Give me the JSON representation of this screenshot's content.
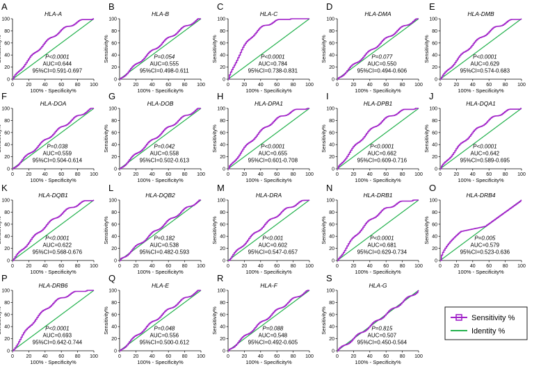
{
  "figure": {
    "x_label": "100% - Specificity%",
    "y_label": "Sensitivity%",
    "legend": {
      "entries": [
        {
          "label": "Sensitivity %",
          "color": "#a020c8",
          "marker": "square"
        },
        {
          "label": "Identity %",
          "color": "#22b14c",
          "marker": "none"
        }
      ]
    }
  },
  "chart_data": [
    {
      "type": "line",
      "panel": "A",
      "title": "HLA-A",
      "p_label": "P<0.0001",
      "auc_label": "AUC=0.644",
      "ci_label": "95%CI=0.591-0.697",
      "auc": 0.644,
      "xlabel": "100% - Specificity%",
      "ylabel": "Sensitivity%",
      "xlim": [
        0,
        100
      ],
      "ylim": [
        0,
        100
      ],
      "ticks": [
        0,
        20,
        40,
        60,
        80,
        100
      ],
      "series": [
        {
          "name": "Sensitivity %",
          "color": "#a020c8"
        },
        {
          "name": "Identity %",
          "color": "#22b14c",
          "x": [
            0,
            100
          ],
          "y": [
            0,
            100
          ]
        }
      ]
    },
    {
      "type": "line",
      "panel": "B",
      "title": "HLA-B",
      "p_label": "P=0.054",
      "auc_label": "AUC=0.555",
      "ci_label": "95%CI=0.498-0.611",
      "auc": 0.555,
      "xlabel": "100% - Specificity%",
      "ylabel": "Sensitivity%",
      "xlim": [
        0,
        100
      ],
      "ylim": [
        0,
        100
      ],
      "ticks": [
        0,
        20,
        40,
        60,
        80,
        100
      ],
      "series": [
        {
          "name": "Sensitivity %",
          "color": "#a020c8"
        },
        {
          "name": "Identity %",
          "color": "#22b14c",
          "x": [
            0,
            100
          ],
          "y": [
            0,
            100
          ]
        }
      ]
    },
    {
      "type": "line",
      "panel": "C",
      "title": "HLA-C",
      "p_label": "P<0.0001",
      "auc_label": "AUC=0.784",
      "ci_label": "95%CI=0.738-0.831",
      "auc": 0.784,
      "xlabel": "100% - Specificity%",
      "ylabel": "Sensitivity%",
      "xlim": [
        0,
        100
      ],
      "ylim": [
        0,
        100
      ],
      "ticks": [
        0,
        20,
        40,
        60,
        80,
        100
      ],
      "series": [
        {
          "name": "Sensitivity %",
          "color": "#a020c8"
        },
        {
          "name": "Identity %",
          "color": "#22b14c",
          "x": [
            0,
            100
          ],
          "y": [
            0,
            100
          ]
        }
      ]
    },
    {
      "type": "line",
      "panel": "D",
      "title": "HLA-DMA",
      "p_label": "P=0.077",
      "auc_label": "AUC=0.550",
      "ci_label": "95%CI=0.494-0.606",
      "auc": 0.55,
      "xlabel": "100% - Specificity%",
      "ylabel": "Sensitivity%",
      "xlim": [
        0,
        100
      ],
      "ylim": [
        0,
        100
      ],
      "ticks": [
        0,
        20,
        40,
        60,
        80,
        100
      ],
      "series": [
        {
          "name": "Sensitivity %",
          "color": "#a020c8"
        },
        {
          "name": "Identity %",
          "color": "#22b14c",
          "x": [
            0,
            100
          ],
          "y": [
            0,
            100
          ]
        }
      ]
    },
    {
      "type": "line",
      "panel": "E",
      "title": "HLA-DMB",
      "p_label": "P<0.0001",
      "auc_label": "AUC=0.629",
      "ci_label": "95%CI=0.574-0.683",
      "auc": 0.629,
      "xlabel": "100% - Specificity%",
      "ylabel": "Sensitivity%",
      "xlim": [
        0,
        100
      ],
      "ylim": [
        0,
        100
      ],
      "ticks": [
        0,
        20,
        40,
        60,
        80,
        100
      ],
      "series": [
        {
          "name": "Sensitivity %",
          "color": "#a020c8"
        },
        {
          "name": "Identity %",
          "color": "#22b14c",
          "x": [
            0,
            100
          ],
          "y": [
            0,
            100
          ]
        }
      ]
    },
    {
      "type": "line",
      "panel": "F",
      "title": "HLA-DOA",
      "p_label": "P=0.038",
      "auc_label": "AUC=0.559",
      "ci_label": "95%CI=0.504-0.614",
      "auc": 0.559,
      "xlabel": "100% - Specificity%",
      "ylabel": "Sensitivity%",
      "xlim": [
        0,
        100
      ],
      "ylim": [
        0,
        100
      ],
      "ticks": [
        0,
        20,
        40,
        60,
        80,
        100
      ],
      "series": [
        {
          "name": "Sensitivity %",
          "color": "#a020c8"
        },
        {
          "name": "Identity %",
          "color": "#22b14c",
          "x": [
            0,
            100
          ],
          "y": [
            0,
            100
          ]
        }
      ]
    },
    {
      "type": "line",
      "panel": "G",
      "title": "HLA-DOB",
      "p_label": "P=0.042",
      "auc_label": "AUC=0.558",
      "ci_label": "95%CI=0.502-0.613",
      "auc": 0.558,
      "xlabel": "100% - Specificity%",
      "ylabel": "Sensitivity%",
      "xlim": [
        0,
        100
      ],
      "ylim": [
        0,
        100
      ],
      "ticks": [
        0,
        20,
        40,
        60,
        80,
        100
      ],
      "series": [
        {
          "name": "Sensitivity %",
          "color": "#a020c8"
        },
        {
          "name": "Identity %",
          "color": "#22b14c",
          "x": [
            0,
            100
          ],
          "y": [
            0,
            100
          ]
        }
      ]
    },
    {
      "type": "line",
      "panel": "H",
      "title": "HLA-DPA1",
      "p_label": "P<0.0001",
      "auc_label": "AUC=0.655",
      "ci_label": "95%CI=0.601-0.708",
      "auc": 0.655,
      "xlabel": "100% - Specificity%",
      "ylabel": "Sensitivity%",
      "xlim": [
        0,
        100
      ],
      "ylim": [
        0,
        100
      ],
      "ticks": [
        0,
        20,
        40,
        60,
        80,
        100
      ],
      "series": [
        {
          "name": "Sensitivity %",
          "color": "#a020c8"
        },
        {
          "name": "Identity %",
          "color": "#22b14c",
          "x": [
            0,
            100
          ],
          "y": [
            0,
            100
          ]
        }
      ]
    },
    {
      "type": "line",
      "panel": "I",
      "title": "HLA-DPB1",
      "p_label": "P<0.0001",
      "auc_label": "AUC=0.662",
      "ci_label": "95%CI=0.609-0.716",
      "auc": 0.662,
      "xlabel": "100% - Specificity%",
      "ylabel": "Sensitivity%",
      "xlim": [
        0,
        100
      ],
      "ylim": [
        0,
        100
      ],
      "ticks": [
        0,
        20,
        40,
        60,
        80,
        100
      ],
      "series": [
        {
          "name": "Sensitivity %",
          "color": "#a020c8"
        },
        {
          "name": "Identity %",
          "color": "#22b14c",
          "x": [
            0,
            100
          ],
          "y": [
            0,
            100
          ]
        }
      ]
    },
    {
      "type": "line",
      "panel": "J",
      "title": "HLA-DQA1",
      "p_label": "P<0.0001",
      "auc_label": "AUC=0.642",
      "ci_label": "95%CI=0.589-0.695",
      "auc": 0.642,
      "xlabel": "100% - Specificity%",
      "ylabel": "Sensitivity%",
      "xlim": [
        0,
        100
      ],
      "ylim": [
        0,
        100
      ],
      "ticks": [
        0,
        20,
        40,
        60,
        80,
        100
      ],
      "series": [
        {
          "name": "Sensitivity %",
          "color": "#a020c8"
        },
        {
          "name": "Identity %",
          "color": "#22b14c",
          "x": [
            0,
            100
          ],
          "y": [
            0,
            100
          ]
        }
      ]
    },
    {
      "type": "line",
      "panel": "K",
      "title": "HLA-DQB1",
      "p_label": "P<0.0001",
      "auc_label": "AUC=0.622",
      "ci_label": "95%CI=0.568-0.676",
      "auc": 0.622,
      "xlabel": "100% - Specificity%",
      "ylabel": "Sensitivity%",
      "xlim": [
        0,
        100
      ],
      "ylim": [
        0,
        100
      ],
      "ticks": [
        0,
        20,
        40,
        60,
        80,
        100
      ],
      "series": [
        {
          "name": "Sensitivity %",
          "color": "#a020c8"
        },
        {
          "name": "Identity %",
          "color": "#22b14c",
          "x": [
            0,
            100
          ],
          "y": [
            0,
            100
          ]
        }
      ]
    },
    {
      "type": "line",
      "panel": "L",
      "title": "HLA-DQB2",
      "p_label": "P=0.182",
      "auc_label": "AUC=0.538",
      "ci_label": "95%CI=0.482-0.593",
      "auc": 0.538,
      "xlabel": "100% - Specificity%",
      "ylabel": "Sensitivity%",
      "xlim": [
        0,
        100
      ],
      "ylim": [
        0,
        100
      ],
      "ticks": [
        0,
        20,
        40,
        60,
        80,
        100
      ],
      "series": [
        {
          "name": "Sensitivity %",
          "color": "#a020c8"
        },
        {
          "name": "Identity %",
          "color": "#22b14c",
          "x": [
            0,
            100
          ],
          "y": [
            0,
            100
          ]
        }
      ]
    },
    {
      "type": "line",
      "panel": "M",
      "title": "HLA-DRA",
      "p_label": "P<0.001",
      "auc_label": "AUC=0.602",
      "ci_label": "95%CI=0.547-0.657",
      "auc": 0.602,
      "xlabel": "100% - Specificity%",
      "ylabel": "Sensitivity%",
      "xlim": [
        0,
        100
      ],
      "ylim": [
        0,
        100
      ],
      "ticks": [
        0,
        20,
        40,
        60,
        80,
        100
      ],
      "series": [
        {
          "name": "Sensitivity %",
          "color": "#a020c8"
        },
        {
          "name": "Identity %",
          "color": "#22b14c",
          "x": [
            0,
            100
          ],
          "y": [
            0,
            100
          ]
        }
      ]
    },
    {
      "type": "line",
      "panel": "N",
      "title": "HLA-DRB1",
      "p_label": "P<0.0001",
      "auc_label": "AUC=0.681",
      "ci_label": "95%CI=0.629-0.734",
      "auc": 0.681,
      "xlabel": "100% - Specificity%",
      "ylabel": "Sensitivity%",
      "xlim": [
        0,
        100
      ],
      "ylim": [
        0,
        100
      ],
      "ticks": [
        0,
        20,
        40,
        60,
        80,
        100
      ],
      "series": [
        {
          "name": "Sensitivity %",
          "color": "#a020c8"
        },
        {
          "name": "Identity %",
          "color": "#22b14c",
          "x": [
            0,
            100
          ],
          "y": [
            0,
            100
          ]
        }
      ]
    },
    {
      "type": "line",
      "panel": "O",
      "title": "HLA-DRB4",
      "p_label": "P=0.005",
      "auc_label": "AUC=0.579",
      "ci_label": "95%CI=0.523-0.636",
      "auc": 0.579,
      "xlabel": "100% - Specificity%",
      "ylabel": "Sensitivity%",
      "xlim": [
        0,
        100
      ],
      "ylim": [
        0,
        100
      ],
      "ticks": [
        0,
        20,
        40,
        60,
        80,
        100
      ],
      "series": [
        {
          "name": "Sensitivity %",
          "color": "#a020c8"
        },
        {
          "name": "Identity %",
          "color": "#22b14c",
          "x": [
            0,
            100
          ],
          "y": [
            0,
            100
          ]
        }
      ]
    },
    {
      "type": "line",
      "panel": "P",
      "title": "HLA-DRB6",
      "p_label": "P<0.0001",
      "auc_label": "AUC=0.693",
      "ci_label": "95%CI=0.642-0.744",
      "auc": 0.693,
      "xlabel": "100% - Specificity%",
      "ylabel": "Sensitivity%",
      "xlim": [
        0,
        100
      ],
      "ylim": [
        0,
        100
      ],
      "ticks": [
        0,
        20,
        40,
        60,
        80,
        100
      ],
      "series": [
        {
          "name": "Sensitivity %",
          "color": "#a020c8"
        },
        {
          "name": "Identity %",
          "color": "#22b14c",
          "x": [
            0,
            100
          ],
          "y": [
            0,
            100
          ]
        }
      ]
    },
    {
      "type": "line",
      "panel": "Q",
      "title": "HLA-E",
      "p_label": "P=0.048",
      "auc_label": "AUC=0.556",
      "ci_label": "95%CI=0.500-0.612",
      "auc": 0.556,
      "xlabel": "100% - Specificity%",
      "ylabel": "Sensitivity%",
      "xlim": [
        0,
        100
      ],
      "ylim": [
        0,
        100
      ],
      "ticks": [
        0,
        20,
        40,
        60,
        80,
        100
      ],
      "series": [
        {
          "name": "Sensitivity %",
          "color": "#a020c8"
        },
        {
          "name": "Identity %",
          "color": "#22b14c",
          "x": [
            0,
            100
          ],
          "y": [
            0,
            100
          ]
        }
      ]
    },
    {
      "type": "line",
      "panel": "R",
      "title": "HLA-F",
      "p_label": "P=0.088",
      "auc_label": "AUC=0.548",
      "ci_label": "95%CI=0.492-0.605",
      "auc": 0.548,
      "xlabel": "100% - Specificity%",
      "ylabel": "Sensitivity%",
      "xlim": [
        0,
        100
      ],
      "ylim": [
        0,
        100
      ],
      "ticks": [
        0,
        20,
        40,
        60,
        80,
        100
      ],
      "series": [
        {
          "name": "Sensitivity %",
          "color": "#a020c8"
        },
        {
          "name": "Identity %",
          "color": "#22b14c",
          "x": [
            0,
            100
          ],
          "y": [
            0,
            100
          ]
        }
      ]
    },
    {
      "type": "line",
      "panel": "S",
      "title": "HLA-G",
      "p_label": "P=0.815",
      "auc_label": "AUC=0.507",
      "ci_label": "95%CI=0.450-0.564",
      "auc": 0.507,
      "xlabel": "100% - Specificity%",
      "ylabel": "Sensitivity%",
      "xlim": [
        0,
        100
      ],
      "ylim": [
        0,
        100
      ],
      "ticks": [
        0,
        20,
        40,
        60,
        80,
        100
      ],
      "series": [
        {
          "name": "Sensitivity %",
          "color": "#a020c8"
        },
        {
          "name": "Identity %",
          "color": "#22b14c",
          "x": [
            0,
            100
          ],
          "y": [
            0,
            100
          ]
        }
      ]
    }
  ]
}
